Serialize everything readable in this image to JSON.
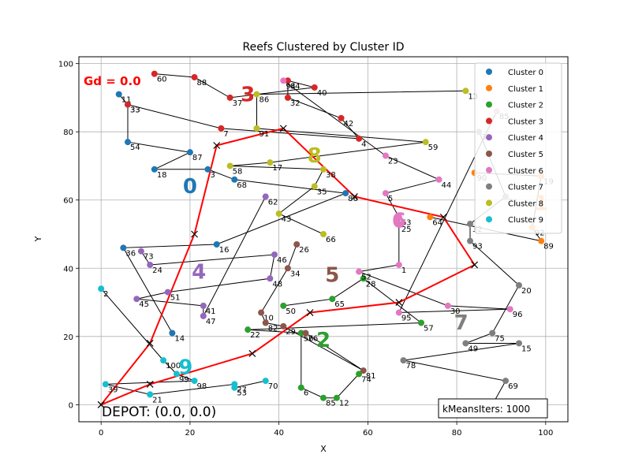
{
  "chart_data": {
    "type": "scatter",
    "title": "Reefs Clustered by Cluster ID",
    "xlabel": "X",
    "ylabel": "Y",
    "xlim": [
      -5,
      105
    ],
    "ylim": [
      -5,
      102
    ],
    "xticks": [
      0,
      20,
      40,
      60,
      80,
      100
    ],
    "yticks": [
      0,
      20,
      40,
      60,
      80,
      100
    ],
    "grid": true,
    "legend_position": "top-right",
    "depot_text": "DEPOT: (0.0, 0.0)",
    "gd_text": "Gd = 0.0",
    "kmeans_text": "kMeansIters: 1000",
    "clusters": [
      {
        "name": "Cluster 0",
        "color": "#1f77b4",
        "label": "0",
        "label_pos": [
          20,
          62
        ],
        "points": [
          [
            11,
            4,
            91
          ],
          [
            33,
            6,
            88
          ],
          [
            54,
            6,
            77
          ],
          [
            87,
            20,
            74
          ],
          [
            18,
            12,
            69
          ],
          [
            3,
            24,
            69
          ],
          [
            68,
            30,
            66
          ],
          [
            86,
            55,
            62
          ],
          [
            16,
            26,
            47
          ],
          [
            36,
            5,
            46
          ],
          [
            14,
            16,
            21
          ]
        ]
      },
      {
        "name": "Cluster 1",
        "color": "#ff7f0e",
        "label": "1",
        "label_pos": [
          99,
          57
        ],
        "points": [
          [
            90,
            84,
            68
          ],
          [
            19,
            99,
            67
          ],
          [
            92,
            97,
            52
          ],
          [
            89,
            99,
            48
          ],
          [
            64,
            74,
            55
          ]
        ]
      },
      {
        "name": "Cluster 2",
        "color": "#2ca02c",
        "label": "2",
        "label_pos": [
          50,
          17
        ],
        "points": [
          [
            50,
            41,
            29
          ],
          [
            65,
            52,
            31
          ],
          [
            28,
            59,
            37
          ],
          [
            57,
            72,
            24
          ],
          [
            22,
            33,
            22
          ],
          [
            56,
            45,
            21
          ],
          [
            6,
            45,
            5
          ],
          [
            85,
            50,
            2
          ],
          [
            12,
            53,
            2
          ],
          [
            74,
            58,
            9
          ]
        ]
      },
      {
        "name": "Cluster 3",
        "color": "#d62728",
        "label": "3",
        "label_pos": [
          33,
          89
        ],
        "points": [
          [
            60,
            12,
            97
          ],
          [
            88,
            21,
            96
          ],
          [
            37,
            29,
            90
          ],
          [
            40,
            48,
            93
          ],
          [
            84,
            42,
            95
          ],
          [
            32,
            42,
            90
          ],
          [
            42,
            54,
            84
          ],
          [
            4,
            58,
            78
          ],
          [
            7,
            27,
            81
          ],
          [
            33,
            6,
            88
          ]
        ]
      },
      {
        "name": "Cluster 4",
        "color": "#9467bd",
        "label": "4",
        "label_pos": [
          22,
          37
        ],
        "points": [
          [
            73,
            9,
            45
          ],
          [
            24,
            11,
            41
          ],
          [
            46,
            39,
            44
          ],
          [
            48,
            38,
            37
          ],
          [
            51,
            15,
            33
          ],
          [
            45,
            8,
            31
          ],
          [
            41,
            23,
            29
          ],
          [
            47,
            23,
            26
          ],
          [
            62,
            37,
            61
          ]
        ]
      },
      {
        "name": "Cluster 5",
        "color": "#8c564b",
        "label": "5",
        "label_pos": [
          52,
          36
        ],
        "points": [
          [
            26,
            44,
            47
          ],
          [
            34,
            42,
            40
          ],
          [
            10,
            36,
            27
          ],
          [
            82,
            37,
            24
          ],
          [
            29,
            41,
            23
          ],
          [
            81,
            59,
            10
          ],
          [
            76,
            46,
            21
          ]
        ]
      },
      {
        "name": "Cluster 6",
        "color": "#e377c2",
        "label": "6",
        "label_pos": [
          67,
          52
        ],
        "points": [
          [
            94,
            41,
            95
          ],
          [
            23,
            64,
            73
          ],
          [
            44,
            76,
            66
          ],
          [
            5,
            64,
            62
          ],
          [
            63,
            67,
            55
          ],
          [
            25,
            67,
            53
          ],
          [
            1,
            67,
            41
          ],
          [
            52,
            58,
            39
          ],
          [
            30,
            78,
            29
          ],
          [
            96,
            92,
            28
          ],
          [
            95,
            67,
            27
          ],
          [
            85,
            89,
            86
          ]
        ]
      },
      {
        "name": "Cluster 7",
        "color": "#7f7f7f",
        "label": "7",
        "label_pos": [
          81,
          22
        ],
        "points": [
          [
            35,
            85,
            80
          ],
          [
            71,
            91,
            61
          ],
          [
            32,
            83,
            53
          ],
          [
            93,
            83,
            48
          ],
          [
            20,
            94,
            35
          ],
          [
            75,
            88,
            21
          ],
          [
            49,
            82,
            18
          ],
          [
            15,
            94,
            18
          ],
          [
            78,
            68,
            13
          ],
          [
            69,
            91,
            7
          ],
          [
            79,
            88,
            0
          ]
        ]
      },
      {
        "name": "Cluster 8",
        "color": "#bcbd22",
        "label": "8",
        "label_pos": [
          48,
          71
        ],
        "points": [
          [
            13,
            82,
            92
          ],
          [
            86,
            35,
            91
          ],
          [
            91,
            35,
            81
          ],
          [
            59,
            73,
            77
          ],
          [
            17,
            38,
            71
          ],
          [
            58,
            29,
            70
          ],
          [
            38,
            50,
            69
          ],
          [
            35,
            48,
            64
          ],
          [
            43,
            40,
            56
          ],
          [
            66,
            50,
            50
          ]
        ]
      },
      {
        "name": "Cluster 9",
        "color": "#17becf",
        "label": "9",
        "label_pos": [
          19,
          9
        ],
        "points": [
          [
            2,
            0,
            34
          ],
          [
            100,
            14,
            13
          ],
          [
            99,
            17,
            9
          ],
          [
            98,
            21,
            7
          ],
          [
            39,
            1,
            6
          ],
          [
            21,
            11,
            3
          ],
          [
            27,
            30,
            6
          ],
          [
            53,
            30,
            5
          ],
          [
            70,
            37,
            7
          ]
        ]
      }
    ],
    "route_red": [
      [
        0,
        0
      ],
      [
        11,
        18
      ],
      [
        21,
        50
      ],
      [
        26,
        76
      ],
      [
        41,
        81
      ],
      [
        57,
        61
      ],
      [
        77,
        55
      ],
      [
        84,
        41
      ],
      [
        67,
        30
      ],
      [
        47,
        27
      ],
      [
        34,
        15
      ],
      [
        11,
        6
      ],
      [
        0,
        0
      ]
    ]
  }
}
